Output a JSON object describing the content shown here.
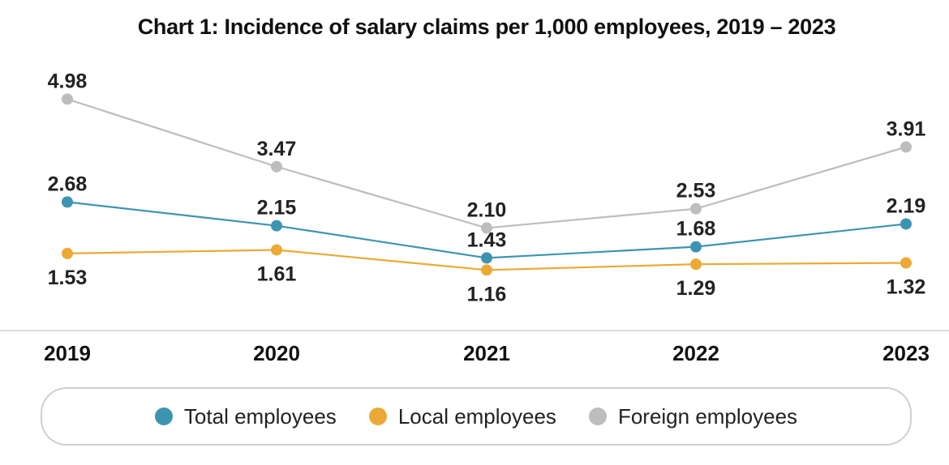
{
  "chart_data": {
    "type": "line",
    "title": "Chart 1: Incidence of salary claims per 1,000 employees, 2019 – 2023",
    "categories": [
      "2019",
      "2020",
      "2021",
      "2022",
      "2023"
    ],
    "series": [
      {
        "name": "Foreign employees",
        "values": [
          4.98,
          3.47,
          2.1,
          2.53,
          3.91
        ],
        "color": "#bdbdbd",
        "label_pos": "above"
      },
      {
        "name": "Total employees",
        "values": [
          2.68,
          2.15,
          1.43,
          1.68,
          2.19
        ],
        "color": "#3d94b1",
        "label_pos": "above"
      },
      {
        "name": "Local employees",
        "values": [
          1.53,
          1.61,
          1.16,
          1.29,
          1.32
        ],
        "color": "#eaaa35",
        "label_pos": "below"
      }
    ],
    "value_labels": {
      "Foreign employees": [
        "4.98",
        "3.47",
        "2.10",
        "2.53",
        "3.91"
      ],
      "Total employees": [
        "2.68",
        "2.15",
        "1.43",
        "1.68",
        "2.19"
      ],
      "Local employees": [
        "1.53",
        "1.61",
        "1.16",
        "1.29",
        "1.32"
      ]
    },
    "legend": {
      "placement": "bottom",
      "entries": [
        {
          "label": "Total employees",
          "color": "#3d94b1"
        },
        {
          "label": "Local employees",
          "color": "#eaaa35"
        },
        {
          "label": "Foreign employees",
          "color": "#bdbdbd"
        }
      ]
    },
    "grid": false,
    "xlabel": "",
    "ylabel": ""
  }
}
